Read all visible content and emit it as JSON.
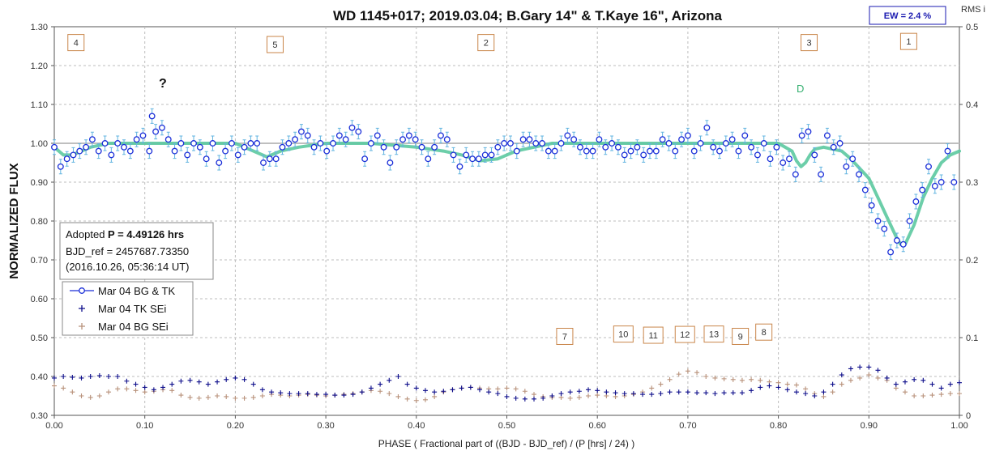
{
  "chart_data": {
    "type": "scatter",
    "title": "WD 1145+017; 2019.03.04; B.Gary 14\" & T.Kaye 16\", Arizona",
    "xlabel": "PHASE ( Fractional part of ((BJD - BJD_ref) / (P [hrs] / 24) )",
    "ylabel": "NORMALIZED FLUX",
    "y2label": "RMS i",
    "xlim": [
      0.0,
      1.0
    ],
    "ylim": [
      0.3,
      1.3
    ],
    "y2lim": [
      0.0,
      0.5
    ],
    "grid": true,
    "x_ticks": [
      "0.00",
      "0.10",
      "0.20",
      "0.30",
      "0.40",
      "0.50",
      "0.60",
      "0.70",
      "0.80",
      "0.90",
      "1.00"
    ],
    "y_ticks": [
      "0.30",
      "0.40",
      "0.50",
      "0.60",
      "0.70",
      "0.80",
      "0.90",
      "1.00",
      "1.10",
      "1.20",
      "1.30"
    ],
    "y2_ticks": [
      "0",
      "0.1",
      "0.2",
      "0.3",
      "0.4",
      "0.5"
    ],
    "ew_label": "EW =  2.4 %",
    "annotations": {
      "question": "?",
      "dip_d": "D",
      "dip_markers": [
        {
          "label": "4",
          "x": 0.015,
          "y": 1.28
        },
        {
          "label": "5",
          "x": 0.235,
          "y": 1.275
        },
        {
          "label": "2",
          "x": 0.468,
          "y": 1.28
        },
        {
          "label": "3",
          "x": 0.825,
          "y": 1.28
        },
        {
          "label": "1",
          "x": 0.935,
          "y": 1.283
        }
      ],
      "low_markers": [
        {
          "label": "7",
          "x": 0.555,
          "y": 0.524
        },
        {
          "label": "10",
          "x": 0.618,
          "y": 0.53
        },
        {
          "label": "11",
          "x": 0.651,
          "y": 0.527
        },
        {
          "label": "12",
          "x": 0.686,
          "y": 0.529
        },
        {
          "label": "13",
          "x": 0.718,
          "y": 0.53
        },
        {
          "label": "9",
          "x": 0.749,
          "y": 0.524
        },
        {
          "label": "8",
          "x": 0.775,
          "y": 0.535
        }
      ]
    },
    "info_box": {
      "line1_prefix": "Adopted ",
      "line1_bold": "P = 4.49126 hrs",
      "line2": "BJD_ref = 2457687.73350",
      "line3": "(2016.10.26, 05:36:14 UT)"
    },
    "legend": {
      "placement": "left",
      "entries": [
        "Mar 04 BG & TK",
        "Mar 04 TK SEi",
        "Mar 04 BG SEi"
      ]
    },
    "colors": {
      "flux": "#1b2fd8",
      "errorbar": "#62b4e0",
      "model": "#5cc9a0",
      "tk_sei": "#0c0c8a",
      "bg_sei": "#b8917a",
      "baseline": "#bfbfbf",
      "box_border": "#c9864a",
      "dip_label": "#35b070"
    },
    "series": [
      {
        "name": "Mar 04 BG & TK",
        "axis": "left",
        "x": [
          0.0,
          0.007,
          0.014,
          0.021,
          0.028,
          0.035,
          0.042,
          0.049,
          0.056,
          0.063,
          0.07,
          0.077,
          0.084,
          0.091,
          0.098,
          0.105,
          0.108,
          0.112,
          0.119,
          0.126,
          0.133,
          0.14,
          0.147,
          0.154,
          0.161,
          0.168,
          0.175,
          0.182,
          0.189,
          0.196,
          0.203,
          0.21,
          0.217,
          0.224,
          0.231,
          0.238,
          0.245,
          0.252,
          0.259,
          0.266,
          0.273,
          0.28,
          0.287,
          0.294,
          0.301,
          0.308,
          0.315,
          0.322,
          0.329,
          0.336,
          0.343,
          0.35,
          0.357,
          0.364,
          0.371,
          0.378,
          0.385,
          0.392,
          0.399,
          0.406,
          0.413,
          0.42,
          0.427,
          0.434,
          0.441,
          0.448,
          0.455,
          0.462,
          0.469,
          0.476,
          0.483,
          0.49,
          0.497,
          0.504,
          0.511,
          0.518,
          0.525,
          0.532,
          0.539,
          0.546,
          0.553,
          0.56,
          0.567,
          0.574,
          0.581,
          0.588,
          0.595,
          0.602,
          0.609,
          0.616,
          0.623,
          0.63,
          0.637,
          0.644,
          0.651,
          0.658,
          0.665,
          0.672,
          0.679,
          0.686,
          0.693,
          0.7,
          0.707,
          0.714,
          0.721,
          0.728,
          0.735,
          0.742,
          0.749,
          0.756,
          0.763,
          0.77,
          0.777,
          0.784,
          0.791,
          0.798,
          0.805,
          0.812,
          0.819,
          0.826,
          0.833,
          0.84,
          0.847,
          0.854,
          0.861,
          0.868,
          0.875,
          0.882,
          0.889,
          0.896,
          0.903,
          0.91,
          0.917,
          0.924,
          0.931,
          0.938,
          0.945,
          0.952,
          0.959,
          0.966,
          0.973,
          0.98,
          0.987,
          0.994
        ],
        "y": [
          0.99,
          0.94,
          0.96,
          0.97,
          0.98,
          0.99,
          1.01,
          0.98,
          1.0,
          0.97,
          1.0,
          0.99,
          0.98,
          1.01,
          1.02,
          0.98,
          1.07,
          1.03,
          1.04,
          1.01,
          0.98,
          1.0,
          0.97,
          1.0,
          0.99,
          0.96,
          1.0,
          0.95,
          0.98,
          1.0,
          0.97,
          0.99,
          1.0,
          1.0,
          0.95,
          0.96,
          0.96,
          0.99,
          1.0,
          1.01,
          1.03,
          1.02,
          0.99,
          1.0,
          0.98,
          1.0,
          1.02,
          1.01,
          1.04,
          1.03,
          0.96,
          1.0,
          1.02,
          0.99,
          0.95,
          0.99,
          1.01,
          1.02,
          1.01,
          0.99,
          0.96,
          0.99,
          1.02,
          1.01,
          0.97,
          0.94,
          0.97,
          0.96,
          0.96,
          0.97,
          0.97,
          0.99,
          1.0,
          1.0,
          0.98,
          1.01,
          1.01,
          1.0,
          1.0,
          0.98,
          0.98,
          1.0,
          1.02,
          1.01,
          0.99,
          0.98,
          0.98,
          1.01,
          0.99,
          1.0,
          0.99,
          0.97,
          0.98,
          0.99,
          0.97,
          0.98,
          0.98,
          1.01,
          1.0,
          0.98,
          1.01,
          1.02,
          0.98,
          1.0,
          1.04,
          0.99,
          0.98,
          1.0,
          1.01,
          0.98,
          1.02,
          0.99,
          0.97,
          1.0,
          0.96,
          0.99,
          0.95,
          0.96,
          0.92,
          1.02,
          1.03,
          0.97,
          0.92,
          1.02,
          0.99,
          1.0,
          0.94,
          0.96,
          0.92,
          0.88,
          0.84,
          0.8,
          0.78,
          0.72,
          0.75,
          0.74,
          0.8,
          0.85,
          0.88,
          0.94,
          0.89,
          0.9,
          0.98,
          0.9
        ]
      },
      {
        "name": "",
        "type": "line",
        "axis": "left",
        "x": [
          0.0,
          0.01,
          0.02,
          0.03,
          0.04,
          0.06,
          0.08,
          0.1,
          0.12,
          0.15,
          0.18,
          0.2,
          0.21,
          0.22,
          0.23,
          0.235,
          0.24,
          0.25,
          0.27,
          0.3,
          0.35,
          0.4,
          0.43,
          0.45,
          0.47,
          0.49,
          0.51,
          0.53,
          0.55,
          0.58,
          0.62,
          0.66,
          0.7,
          0.74,
          0.78,
          0.8,
          0.815,
          0.82,
          0.825,
          0.83,
          0.835,
          0.84,
          0.85,
          0.87,
          0.88,
          0.89,
          0.9,
          0.91,
          0.92,
          0.93,
          0.935,
          0.94,
          0.95,
          0.96,
          0.97,
          0.98,
          0.99,
          1.0
        ],
        "y": [
          0.99,
          0.97,
          0.97,
          0.98,
          0.99,
          1.0,
          1.0,
          1.0,
          1.0,
          1.0,
          1.0,
          1.0,
          0.99,
          0.98,
          0.97,
          0.965,
          0.97,
          0.98,
          0.99,
          1.0,
          1.0,
          0.99,
          0.98,
          0.97,
          0.955,
          0.96,
          0.98,
          0.99,
          1.0,
          1.0,
          1.0,
          1.0,
          1.0,
          1.0,
          1.0,
          1.0,
          0.98,
          0.955,
          0.94,
          0.95,
          0.97,
          0.985,
          0.99,
          0.98,
          0.96,
          0.935,
          0.91,
          0.86,
          0.81,
          0.76,
          0.74,
          0.74,
          0.79,
          0.86,
          0.91,
          0.95,
          0.97,
          0.98
        ]
      },
      {
        "name": "Mar 04 TK SEi",
        "axis": "right",
        "x": [
          0.0,
          0.01,
          0.02,
          0.03,
          0.04,
          0.05,
          0.06,
          0.07,
          0.08,
          0.09,
          0.1,
          0.11,
          0.12,
          0.13,
          0.14,
          0.15,
          0.16,
          0.17,
          0.18,
          0.19,
          0.2,
          0.21,
          0.22,
          0.23,
          0.24,
          0.25,
          0.26,
          0.27,
          0.28,
          0.29,
          0.3,
          0.31,
          0.32,
          0.33,
          0.34,
          0.35,
          0.36,
          0.37,
          0.38,
          0.39,
          0.4,
          0.41,
          0.42,
          0.43,
          0.44,
          0.45,
          0.46,
          0.47,
          0.48,
          0.49,
          0.5,
          0.51,
          0.52,
          0.53,
          0.54,
          0.55,
          0.56,
          0.57,
          0.58,
          0.59,
          0.6,
          0.61,
          0.62,
          0.63,
          0.64,
          0.65,
          0.66,
          0.67,
          0.68,
          0.69,
          0.7,
          0.71,
          0.72,
          0.73,
          0.74,
          0.75,
          0.76,
          0.77,
          0.78,
          0.79,
          0.8,
          0.81,
          0.82,
          0.83,
          0.84,
          0.85,
          0.86,
          0.87,
          0.88,
          0.89,
          0.9,
          0.91,
          0.92,
          0.93,
          0.94,
          0.95,
          0.96,
          0.97,
          0.98,
          0.99,
          1.0
        ],
        "y": [
          0.048,
          0.05,
          0.049,
          0.048,
          0.05,
          0.051,
          0.05,
          0.05,
          0.044,
          0.04,
          0.036,
          0.033,
          0.036,
          0.04,
          0.044,
          0.045,
          0.043,
          0.04,
          0.043,
          0.046,
          0.048,
          0.046,
          0.04,
          0.033,
          0.03,
          0.029,
          0.028,
          0.028,
          0.028,
          0.027,
          0.027,
          0.026,
          0.026,
          0.027,
          0.03,
          0.035,
          0.04,
          0.045,
          0.05,
          0.04,
          0.035,
          0.032,
          0.03,
          0.031,
          0.033,
          0.035,
          0.036,
          0.033,
          0.03,
          0.028,
          0.024,
          0.022,
          0.021,
          0.021,
          0.022,
          0.025,
          0.028,
          0.03,
          0.031,
          0.033,
          0.032,
          0.03,
          0.029,
          0.028,
          0.028,
          0.027,
          0.027,
          0.028,
          0.03,
          0.03,
          0.03,
          0.029,
          0.029,
          0.028,
          0.029,
          0.029,
          0.029,
          0.032,
          0.036,
          0.038,
          0.036,
          0.033,
          0.03,
          0.028,
          0.025,
          0.03,
          0.04,
          0.052,
          0.06,
          0.062,
          0.062,
          0.058,
          0.048,
          0.04,
          0.043,
          0.046,
          0.045,
          0.04,
          0.035,
          0.04,
          0.042
        ]
      },
      {
        "name": "Mar 04 BG SEi",
        "axis": "right",
        "x": [
          0.0,
          0.01,
          0.02,
          0.03,
          0.04,
          0.05,
          0.06,
          0.07,
          0.08,
          0.09,
          0.1,
          0.11,
          0.12,
          0.13,
          0.14,
          0.15,
          0.16,
          0.17,
          0.18,
          0.19,
          0.2,
          0.21,
          0.22,
          0.23,
          0.24,
          0.25,
          0.26,
          0.27,
          0.28,
          0.29,
          0.3,
          0.31,
          0.32,
          0.33,
          0.34,
          0.35,
          0.36,
          0.37,
          0.38,
          0.39,
          0.4,
          0.41,
          0.42,
          0.43,
          0.44,
          0.45,
          0.46,
          0.47,
          0.48,
          0.49,
          0.5,
          0.51,
          0.52,
          0.53,
          0.54,
          0.55,
          0.56,
          0.57,
          0.58,
          0.59,
          0.6,
          0.61,
          0.62,
          0.63,
          0.64,
          0.65,
          0.66,
          0.67,
          0.68,
          0.69,
          0.7,
          0.71,
          0.72,
          0.73,
          0.74,
          0.75,
          0.76,
          0.77,
          0.78,
          0.79,
          0.8,
          0.81,
          0.82,
          0.83,
          0.84,
          0.85,
          0.86,
          0.87,
          0.88,
          0.89,
          0.9,
          0.91,
          0.92,
          0.93,
          0.94,
          0.95,
          0.96,
          0.97,
          0.98,
          0.99,
          1.0
        ],
        "y": [
          0.038,
          0.035,
          0.03,
          0.025,
          0.023,
          0.025,
          0.03,
          0.034,
          0.034,
          0.032,
          0.03,
          0.031,
          0.033,
          0.032,
          0.026,
          0.023,
          0.022,
          0.023,
          0.025,
          0.024,
          0.022,
          0.022,
          0.023,
          0.025,
          0.027,
          0.026,
          0.025,
          0.026,
          0.027,
          0.026,
          0.025,
          0.026,
          0.027,
          0.028,
          0.03,
          0.032,
          0.031,
          0.028,
          0.024,
          0.021,
          0.019,
          0.02,
          0.024,
          0.03,
          0.033,
          0.035,
          0.036,
          0.035,
          0.034,
          0.034,
          0.035,
          0.034,
          0.031,
          0.027,
          0.024,
          0.023,
          0.023,
          0.022,
          0.023,
          0.025,
          0.026,
          0.025,
          0.024,
          0.025,
          0.027,
          0.03,
          0.035,
          0.04,
          0.046,
          0.053,
          0.057,
          0.055,
          0.05,
          0.048,
          0.047,
          0.046,
          0.045,
          0.046,
          0.045,
          0.043,
          0.042,
          0.04,
          0.039,
          0.034,
          0.028,
          0.024,
          0.03,
          0.04,
          0.045,
          0.048,
          0.052,
          0.048,
          0.045,
          0.035,
          0.03,
          0.025,
          0.025,
          0.026,
          0.027,
          0.028,
          0.028
        ]
      }
    ]
  }
}
